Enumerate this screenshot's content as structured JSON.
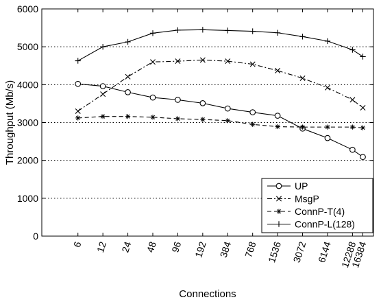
{
  "chart_data": {
    "type": "line",
    "xlabel": "Connections",
    "ylabel": "Throughput (Mb/s)",
    "categories": [
      "6",
      "12",
      "24",
      "48",
      "96",
      "192",
      "384",
      "768",
      "1536",
      "3072",
      "6144",
      "12288",
      "16384"
    ],
    "x_positions": [
      6,
      12,
      24,
      48,
      96,
      192,
      384,
      768,
      1536,
      3072,
      6144,
      12288,
      16384
    ],
    "x_scale": "log2",
    "xlim": [
      2.2,
      22000
    ],
    "ylim": [
      0,
      6000
    ],
    "yticks": [
      0,
      1000,
      2000,
      3000,
      4000,
      5000,
      6000
    ],
    "grid": "horizontal dotted",
    "legend_position": "bottom-right",
    "series": [
      {
        "name": "UP",
        "marker": "circle",
        "dash": "solid",
        "values": [
          4020,
          3960,
          3800,
          3660,
          3600,
          3510,
          3370,
          3270,
          3180,
          2840,
          2590,
          2280,
          2090
        ]
      },
      {
        "name": "MsgP",
        "marker": "x",
        "dash": "dashdot",
        "values": [
          3300,
          3750,
          4210,
          4600,
          4620,
          4650,
          4620,
          4540,
          4370,
          4170,
          3920,
          3600,
          3390
        ]
      },
      {
        "name": "ConnP-T(4)",
        "marker": "star",
        "dash": "dashed",
        "values": [
          3120,
          3160,
          3160,
          3140,
          3100,
          3080,
          3050,
          2950,
          2890,
          2880,
          2880,
          2880,
          2860
        ]
      },
      {
        "name": "ConnP-L(128)",
        "marker": "plus",
        "dash": "solid",
        "values": [
          4630,
          5000,
          5130,
          5360,
          5440,
          5450,
          5430,
          5410,
          5370,
          5270,
          5150,
          4920,
          4740
        ]
      }
    ]
  }
}
